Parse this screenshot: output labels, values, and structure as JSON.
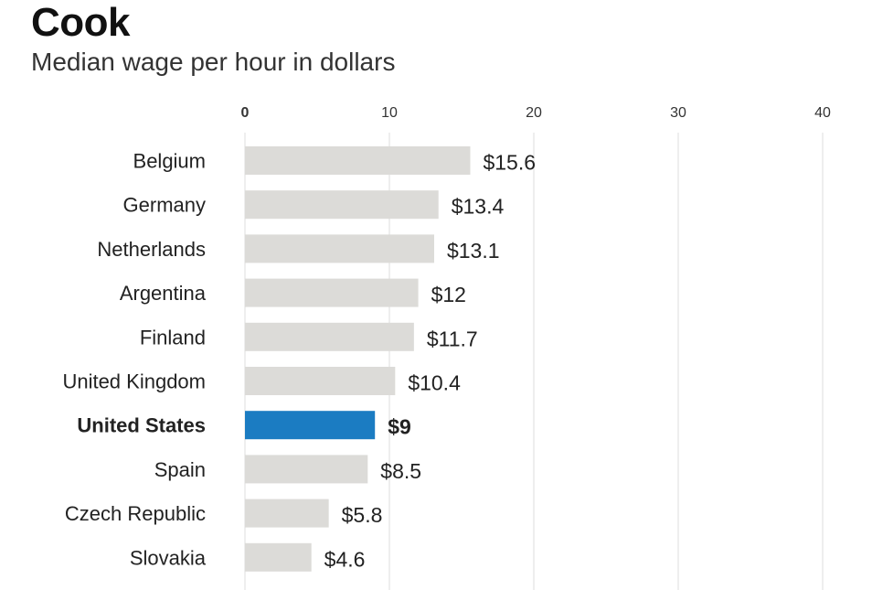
{
  "chart_data": {
    "type": "bar",
    "orientation": "horizontal",
    "title": "Cook",
    "subtitle": "Median wage per hour in dollars",
    "xlabel": "",
    "ylabel": "",
    "xlim": [
      0,
      40
    ],
    "ticks": [
      "0",
      "10",
      "20",
      "30",
      "40"
    ],
    "tick_values": [
      0,
      10,
      20,
      30,
      40
    ],
    "grid": true,
    "categories": [
      "Belgium",
      "Germany",
      "Netherlands",
      "Argentina",
      "Finland",
      "United Kingdom",
      "United States",
      "Spain",
      "Czech Republic",
      "Slovakia"
    ],
    "values": [
      15.6,
      13.4,
      13.1,
      12,
      11.7,
      10.4,
      9,
      8.5,
      5.8,
      4.6
    ],
    "labels": [
      "$15.6",
      "$13.4",
      "$13.1",
      "$12",
      "$11.7",
      "$10.4",
      "$9",
      "$8.5",
      "$5.8",
      "$4.6"
    ],
    "highlight": "United States",
    "colors": {
      "default": "#dcdbd8",
      "highlight": "#1b7cc2",
      "grid": "#dddddd"
    }
  }
}
